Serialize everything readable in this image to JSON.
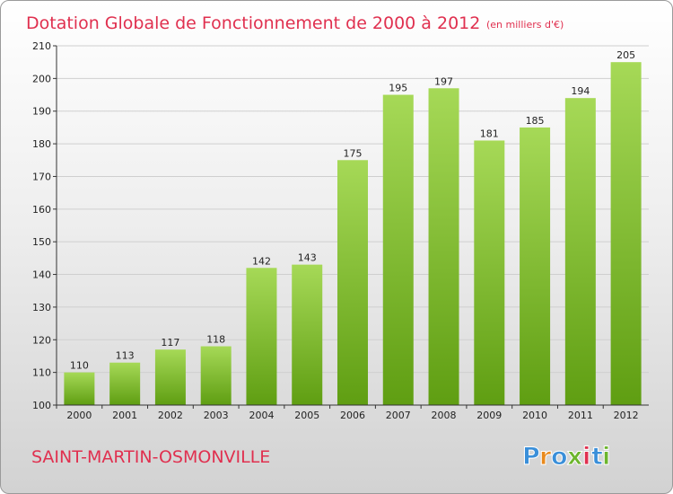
{
  "colors": {
    "title": "#e0304f",
    "bar_top": "#a6d957",
    "bar_bottom": "#5f9e12",
    "grid": "#cfcfcf",
    "axis": "#333333",
    "logo": [
      "#3a8fd9",
      "#e98a1d",
      "#3a8fd9",
      "#6cb52d",
      "#e0304f",
      "#3a8fd9",
      "#6cb52d"
    ]
  },
  "chart_data": {
    "type": "bar",
    "title": "Dotation Globale de Fonctionnement de 2000 à 2012",
    "subtitle": "(en milliers d'€)",
    "xlabel": "",
    "ylabel": "",
    "categories": [
      "2000",
      "2001",
      "2002",
      "2003",
      "2004",
      "2005",
      "2006",
      "2007",
      "2008",
      "2009",
      "2010",
      "2011",
      "2012"
    ],
    "values": [
      110,
      113,
      117,
      118,
      142,
      143,
      175,
      195,
      197,
      181,
      185,
      194,
      205
    ],
    "ylim": [
      100,
      210
    ],
    "yticks": [
      100,
      110,
      120,
      130,
      140,
      150,
      160,
      170,
      180,
      190,
      200,
      210
    ],
    "grid": true,
    "data_labels": true
  },
  "commune": "SAINT-MARTIN-OSMONVILLE",
  "logo_text": "Proxiti"
}
